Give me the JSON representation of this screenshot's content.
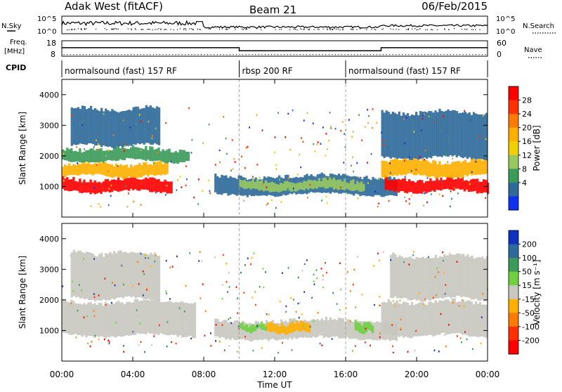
{
  "header": {
    "site_label": "Adak West (fitACF)",
    "beam_label": "Beam 21",
    "date_label": "06/Feb/2015"
  },
  "summary_panels": {
    "nsky_label": "N.Sky",
    "nsearch_label": "N.Search",
    "noise_ticks_left": [
      "10^5",
      "10^0"
    ],
    "noise_ticks_right": [
      "10^5",
      "10^0"
    ],
    "freq_label_line1": "Freq.",
    "freq_label_line2": "[MHz]",
    "freq_ticks": [
      "18",
      "8"
    ],
    "nave_label": "Nave",
    "nave_ticks": [
      "60",
      "0"
    ],
    "cpid_label": "CPID",
    "cpid_segments": [
      {
        "label": "normalsound (fast) 157 RF",
        "start_hour": 0,
        "end_hour": 10
      },
      {
        "label": "rbsp 200 RF",
        "start_hour": 10,
        "end_hour": 16
      },
      {
        "label": "normalsound (fast) 157 RF",
        "start_hour": 16,
        "end_hour": 24
      }
    ],
    "freq_series": [
      {
        "hour": 0,
        "value": 13.5
      },
      {
        "hour": 10,
        "value": 13.5
      },
      {
        "hour": 10,
        "value": 11.5
      },
      {
        "hour": 18,
        "value": 11.5
      },
      {
        "hour": 18,
        "value": 13.5
      },
      {
        "hour": 24,
        "value": 13.5
      }
    ],
    "nave_level": 8
  },
  "chart_data": [
    {
      "type": "heatmap",
      "title": "Power",
      "xlabel": "Time UT",
      "ylabel": "Slant Range [km]",
      "xlim": [
        0,
        24
      ],
      "ylim": [
        0,
        4500
      ],
      "x_ticks": [
        "00:00",
        "04:00",
        "08:00",
        "12:00",
        "16:00",
        "20:00",
        "00:00"
      ],
      "y_ticks": [
        "1000",
        "2000",
        "3000",
        "4000"
      ],
      "colorbar_label": "Power [dB]",
      "colorbar_ticks": [
        "28",
        "24",
        "20",
        "16",
        "12",
        "8",
        "4"
      ],
      "colorbar_colors": [
        "#ff0000",
        "#ff3000",
        "#ff7a00",
        "#ffb000",
        "#f0d000",
        "#98c860",
        "#3c9a5a",
        "#2e6a9a",
        "#1030f0"
      ],
      "regions": [
        {
          "start_hour": 0.0,
          "end_hour": 6.2,
          "range_min": 800,
          "range_max": 1300,
          "color_index": 0
        },
        {
          "start_hour": 0.0,
          "end_hour": 6.0,
          "range_min": 1300,
          "range_max": 1800,
          "color_index": 3
        },
        {
          "start_hour": 0.0,
          "end_hour": 7.2,
          "range_min": 1800,
          "range_max": 2300,
          "color_index": 6
        },
        {
          "start_hour": 0.5,
          "end_hour": 5.5,
          "range_min": 2300,
          "range_max": 3600,
          "color_index": 7
        },
        {
          "start_hour": 8.6,
          "end_hour": 18.8,
          "range_min": 700,
          "range_max": 1400,
          "color_index": 7
        },
        {
          "start_hour": 10.0,
          "end_hour": 17.0,
          "range_min": 850,
          "range_max": 1250,
          "color_index": 5
        },
        {
          "start_hour": 18.2,
          "end_hour": 24.0,
          "range_min": 800,
          "range_max": 1300,
          "color_index": 0
        },
        {
          "start_hour": 18.0,
          "end_hour": 24.0,
          "range_min": 1300,
          "range_max": 1900,
          "color_index": 3
        },
        {
          "start_hour": 18.0,
          "end_hour": 24.0,
          "range_min": 1900,
          "range_max": 3500,
          "color_index": 7
        }
      ]
    },
    {
      "type": "heatmap",
      "title": "Velocity",
      "xlabel": "Time UT",
      "ylabel": "Slant Range [km]",
      "xlim": [
        0,
        24
      ],
      "ylim": [
        0,
        4500
      ],
      "x_ticks": [
        "00:00",
        "04:00",
        "08:00",
        "12:00",
        "16:00",
        "20:00",
        "00:00"
      ],
      "y_ticks": [
        "1000",
        "2000",
        "3000",
        "4000"
      ],
      "colorbar_label": "Velocity [m s⁻¹]",
      "colorbar_ticks": [
        "200",
        "100",
        "50",
        "15",
        "-15",
        "-50",
        "-100",
        "-200"
      ],
      "colorbar_colors": [
        "#1030c0",
        "#2e6aa0",
        "#3c9a5a",
        "#70d040",
        "#c8c8c0",
        "#ffb000",
        "#ff7a00",
        "#ff3000",
        "#ff0000"
      ],
      "regions": [
        {
          "start_hour": 0.0,
          "end_hour": 7.5,
          "range_min": 800,
          "range_max": 2000,
          "color_index": 4
        },
        {
          "start_hour": 0.5,
          "end_hour": 5.5,
          "range_min": 2000,
          "range_max": 3600,
          "color_index": 4
        },
        {
          "start_hour": 8.6,
          "end_hour": 18.8,
          "range_min": 700,
          "range_max": 1400,
          "color_index": 4
        },
        {
          "start_hour": 11.5,
          "end_hour": 14.0,
          "range_min": 900,
          "range_max": 1300,
          "color_index": 5
        },
        {
          "start_hour": 10.0,
          "end_hour": 11.5,
          "range_min": 950,
          "range_max": 1250,
          "color_index": 3
        },
        {
          "start_hour": 16.5,
          "end_hour": 17.5,
          "range_min": 900,
          "range_max": 1300,
          "color_index": 3
        },
        {
          "start_hour": 18.0,
          "end_hour": 24.0,
          "range_min": 800,
          "range_max": 2000,
          "color_index": 4
        },
        {
          "start_hour": 18.5,
          "end_hour": 24.0,
          "range_min": 2000,
          "range_max": 3500,
          "color_index": 4
        }
      ]
    }
  ]
}
